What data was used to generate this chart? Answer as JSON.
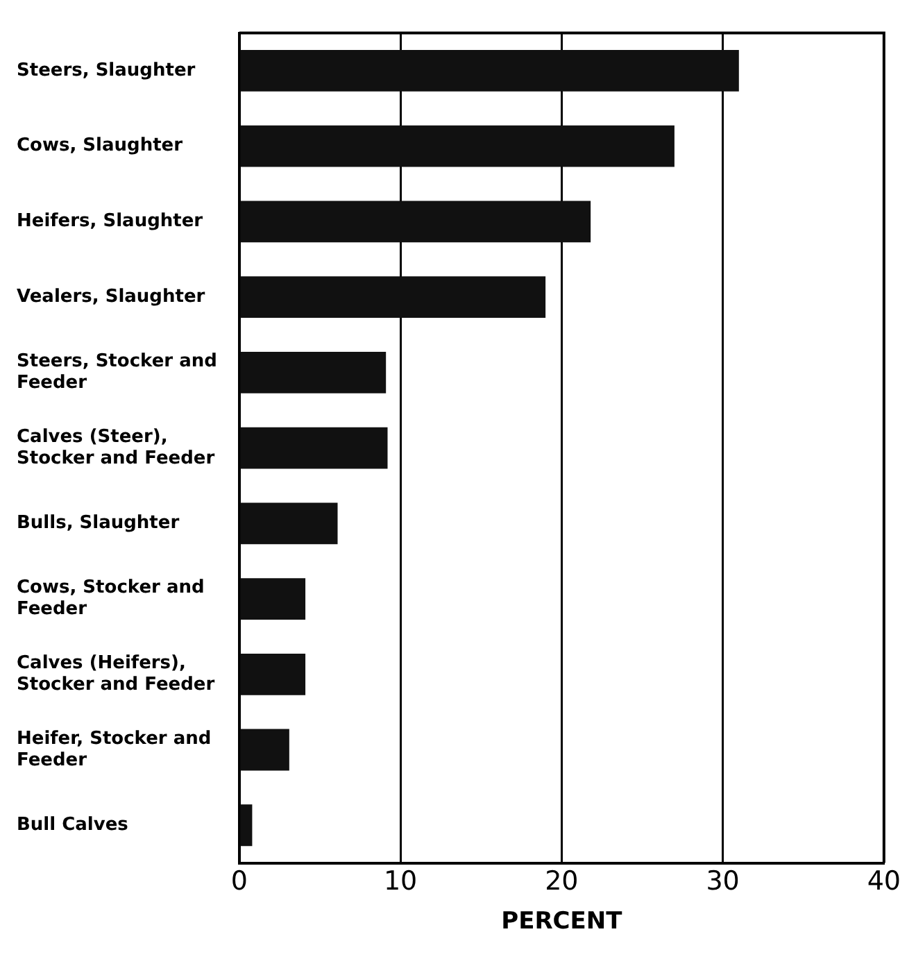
{
  "chart_data": {
    "type": "bar",
    "orientation": "horizontal",
    "xlabel": "PERCENT",
    "categories": [
      "Steers, Slaughter",
      "Cows, Slaughter",
      "Heifers, Slaughter",
      "Vealers, Slaughter",
      "Steers, Stocker and Feeder",
      "Calves (Steer), Stocker and Feeder",
      "Bulls, Slaughter",
      "Cows, Stocker and Feeder",
      "Calves (Heifers), Stocker and Feeder",
      "Heifer, Stocker and Feeder",
      "Bull Calves"
    ],
    "values": [
      31,
      27,
      21.8,
      19,
      9.1,
      9.2,
      6.1,
      4.1,
      4.1,
      3.1,
      0.8
    ],
    "color": "#111111",
    "xlim": [
      0,
      40
    ],
    "xticks": [
      0,
      10,
      20,
      30,
      40
    ],
    "grid": "x",
    "legend": false
  }
}
